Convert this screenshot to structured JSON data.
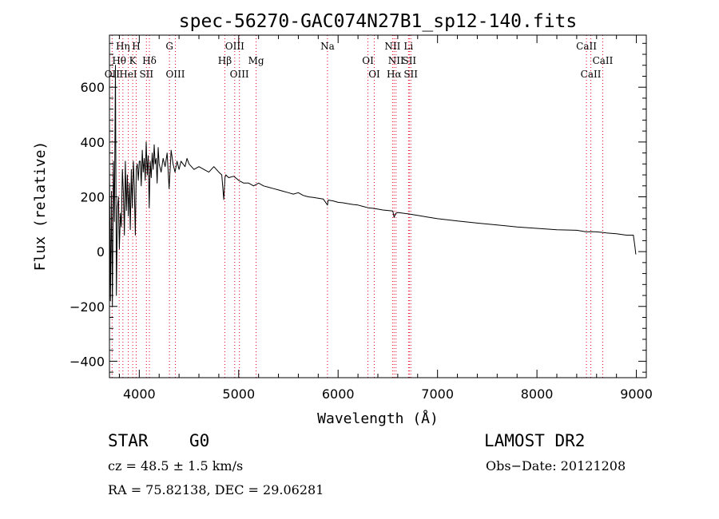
{
  "chart_data": {
    "type": "line",
    "title": "spec-56270-GAC074N27B1_sp12-140.fits",
    "xlabel": "Wavelength (Å)",
    "ylabel": "Flux (relative)",
    "xlim": [
      3700,
      9100
    ],
    "ylim": [
      -460,
      790
    ],
    "x_ticks": [
      {
        "value": 4000,
        "label": "4000"
      },
      {
        "value": 5000,
        "label": "5000"
      },
      {
        "value": 6000,
        "label": "6000"
      },
      {
        "value": 7000,
        "label": "7000"
      },
      {
        "value": 8000,
        "label": "8000"
      },
      {
        "value": 9000,
        "label": "9000"
      }
    ],
    "y_ticks": [
      {
        "value": -400,
        "label": "−400"
      },
      {
        "value": -200,
        "label": "−200"
      },
      {
        "value": 0,
        "label": "0"
      },
      {
        "value": 200,
        "label": "200"
      },
      {
        "value": 400,
        "label": "400"
      },
      {
        "value": 600,
        "label": "600"
      }
    ],
    "grid": false,
    "series": [
      {
        "color": "#000000",
        "x": [
          3700,
          3710,
          3720,
          3730,
          3740,
          3750,
          3760,
          3770,
          3780,
          3790,
          3800,
          3810,
          3820,
          3830,
          3840,
          3850,
          3860,
          3870,
          3880,
          3890,
          3900,
          3910,
          3920,
          3930,
          3940,
          3950,
          3960,
          3970,
          3980,
          3990,
          4000,
          4010,
          4020,
          4030,
          4040,
          4050,
          4060,
          4070,
          4080,
          4090,
          4100,
          4110,
          4120,
          4130,
          4140,
          4150,
          4160,
          4170,
          4180,
          4190,
          4200,
          4220,
          4240,
          4260,
          4280,
          4300,
          4320,
          4340,
          4360,
          4380,
          4400,
          4420,
          4440,
          4460,
          4480,
          4500,
          4550,
          4600,
          4650,
          4700,
          4750,
          4800,
          4830,
          4850,
          4862,
          4870,
          4900,
          4950,
          5000,
          5050,
          5100,
          5150,
          5200,
          5250,
          5300,
          5350,
          5400,
          5450,
          5500,
          5550,
          5600,
          5650,
          5700,
          5750,
          5800,
          5850,
          5893,
          5900,
          5950,
          6000,
          6050,
          6100,
          6150,
          6200,
          6250,
          6300,
          6350,
          6400,
          6450,
          6500,
          6550,
          6563,
          6580,
          6600,
          6700,
          6800,
          6900,
          7000,
          7200,
          7400,
          7600,
          7800,
          8000,
          8200,
          8400,
          8498,
          8542,
          8600,
          8662,
          8700,
          8800,
          8900,
          8970,
          8985,
          8995
        ],
        "y": [
          310,
          -180,
          220,
          -200,
          330,
          110,
          680,
          -160,
          160,
          200,
          10,
          140,
          90,
          300,
          220,
          60,
          330,
          150,
          280,
          130,
          250,
          80,
          300,
          160,
          330,
          240,
          60,
          300,
          320,
          260,
          330,
          330,
          240,
          370,
          290,
          340,
          260,
          400,
          280,
          350,
          160,
          330,
          270,
          360,
          300,
          390,
          320,
          340,
          250,
          380,
          320,
          290,
          340,
          310,
          360,
          230,
          370,
          320,
          290,
          330,
          300,
          330,
          320,
          310,
          340,
          320,
          300,
          310,
          300,
          290,
          310,
          290,
          280,
          190,
          270,
          280,
          270,
          275,
          260,
          250,
          250,
          240,
          250,
          240,
          235,
          230,
          225,
          220,
          215,
          210,
          215,
          205,
          200,
          198,
          195,
          192,
          170,
          188,
          185,
          180,
          178,
          175,
          172,
          170,
          165,
          160,
          158,
          155,
          152,
          150,
          148,
          125,
          140,
          143,
          138,
          132,
          126,
          120,
          112,
          104,
          97,
          90,
          85,
          80,
          78,
          72,
          73,
          72,
          70,
          68,
          65,
          60,
          60,
          20,
          -10
        ]
      }
    ],
    "line_markers": [
      {
        "label": "Hη",
        "wavelength": 3835,
        "row": 0
      },
      {
        "label": "H",
        "wavelength": 3969,
        "row": 0
      },
      {
        "label": "G",
        "wavelength": 4304,
        "row": 0
      },
      {
        "label": "OIII",
        "wavelength": 4960,
        "row": 0
      },
      {
        "label": "Na",
        "wavelength": 5893,
        "row": 0
      },
      {
        "label": "NII",
        "wavelength": 6548,
        "row": 0
      },
      {
        "label": "Li",
        "wavelength": 6708,
        "row": 0
      },
      {
        "label": "CaII",
        "wavelength": 8498,
        "row": 0
      },
      {
        "label": "Hθ",
        "wavelength": 3798,
        "row": 1
      },
      {
        "label": "K",
        "wavelength": 3934,
        "row": 1
      },
      {
        "label": "Hδ",
        "wavelength": 4102,
        "row": 1
      },
      {
        "label": "Hβ",
        "wavelength": 4861,
        "row": 1
      },
      {
        "label": "Mg",
        "wavelength": 5175,
        "row": 1
      },
      {
        "label": "OI",
        "wavelength": 6300,
        "row": 1
      },
      {
        "label": "NII",
        "wavelength": 6583,
        "row": 1
      },
      {
        "label": "SII",
        "wavelength": 6716,
        "row": 1
      },
      {
        "label": "CaII",
        "wavelength": 8662,
        "row": 1
      },
      {
        "label": "OII",
        "wavelength": 3727,
        "row": 2
      },
      {
        "label": "HeI",
        "wavelength": 3889,
        "row": 2
      },
      {
        "label": "SII",
        "wavelength": 4072,
        "row": 2
      },
      {
        "label": "OIII",
        "wavelength": 4363,
        "row": 2
      },
      {
        "label": "OIII",
        "wavelength": 5007,
        "row": 2
      },
      {
        "label": "OI",
        "wavelength": 6364,
        "row": 2
      },
      {
        "label": "Hα",
        "wavelength": 6563,
        "row": 2
      },
      {
        "label": "SII",
        "wavelength": 6731,
        "row": 2
      },
      {
        "label": "CaII",
        "wavelength": 8542,
        "row": 2
      }
    ],
    "marker_color": "#e8001c"
  },
  "info": {
    "object_type": "STAR",
    "subclass": "G0",
    "survey": "LAMOST DR2",
    "redshift_line": "cz = 48.5 ± 1.5 km/s",
    "obs_date_line": "Obs−Date: 20121208",
    "coords_line": "RA =  75.82138, DEC =  29.06281"
  }
}
